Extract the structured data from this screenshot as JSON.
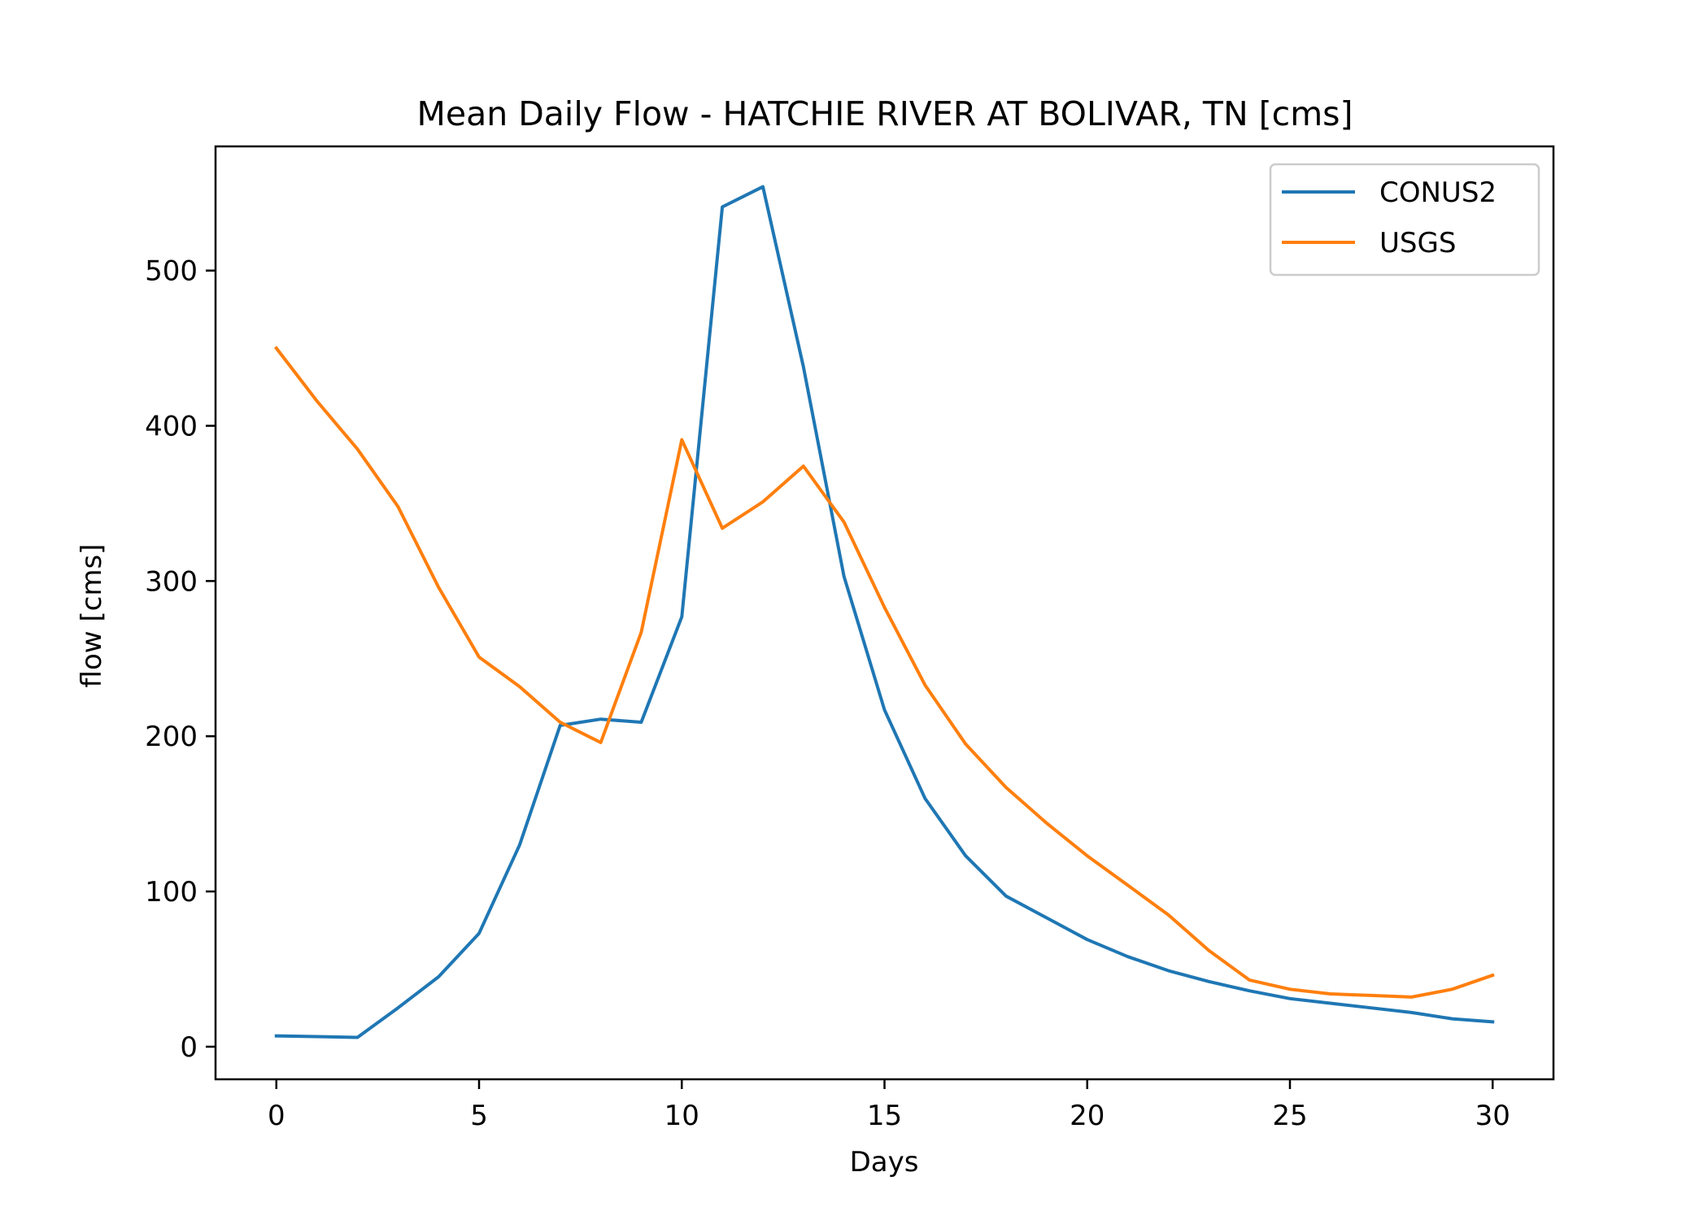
{
  "chart_data": {
    "type": "line",
    "title": "Mean Daily Flow - HATCHIE RIVER AT BOLIVAR, TN [cms]",
    "xlabel": "Days",
    "ylabel": "flow [cms]",
    "xlim": [
      -1.5,
      31.5
    ],
    "ylim": [
      -21,
      580
    ],
    "xticks": [
      0,
      5,
      10,
      15,
      20,
      25,
      30
    ],
    "yticks": [
      0,
      100,
      200,
      300,
      400,
      500
    ],
    "grid": false,
    "legend_position": "top-right",
    "x": [
      0,
      1,
      2,
      3,
      4,
      5,
      6,
      7,
      8,
      9,
      10,
      11,
      12,
      13,
      14,
      15,
      16,
      17,
      18,
      19,
      20,
      21,
      22,
      23,
      24,
      25,
      26,
      27,
      28,
      29,
      30
    ],
    "series": [
      {
        "name": "CONUS2",
        "color": "#1f77b4",
        "values": [
          7,
          6.5,
          6,
          25,
          45,
          73,
          130,
          207,
          211,
          209,
          277,
          541,
          554,
          438,
          303,
          217,
          160,
          123,
          97,
          83,
          69,
          58,
          49,
          42,
          36,
          31,
          28,
          25,
          22,
          18,
          16
        ]
      },
      {
        "name": "USGS",
        "color": "#ff7f0e",
        "values": [
          450,
          416,
          385,
          348,
          296,
          251,
          232,
          209,
          196,
          267,
          391,
          334,
          351,
          374,
          338,
          283,
          233,
          195,
          167,
          144,
          123,
          104,
          85,
          62,
          43,
          37,
          34,
          33,
          32,
          37,
          46
        ]
      }
    ]
  }
}
